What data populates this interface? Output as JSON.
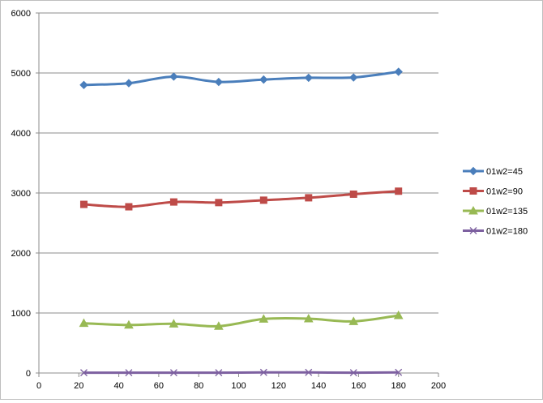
{
  "chart_data": {
    "type": "line",
    "title": "",
    "xlabel": "",
    "ylabel": "",
    "xlim": [
      0,
      200
    ],
    "ylim": [
      0,
      6000
    ],
    "x_ticks": [
      "0",
      "20",
      "40",
      "60",
      "80",
      "100",
      "120",
      "140",
      "160",
      "180",
      "200"
    ],
    "y_ticks": [
      "0",
      "1000",
      "2000",
      "3000",
      "4000",
      "5000",
      "6000"
    ],
    "grid": "horizontal",
    "legend_position": "right",
    "x": [
      22.5,
      45,
      67.5,
      90,
      112.5,
      135,
      157.5,
      180
    ],
    "series": [
      {
        "name": "01w2=45",
        "color": "#4a7ebb",
        "marker": "diamond",
        "values": [
          4800,
          4830,
          4940,
          4850,
          4890,
          4920,
          4925,
          5020
        ]
      },
      {
        "name": "01w2=90",
        "color": "#be4b48",
        "marker": "square",
        "values": [
          2810,
          2770,
          2850,
          2840,
          2880,
          2920,
          2980,
          3030
        ]
      },
      {
        "name": "01w2=135",
        "color": "#98b954",
        "marker": "triangle",
        "values": [
          830,
          800,
          820,
          780,
          900,
          905,
          860,
          960
        ]
      },
      {
        "name": "01w2=180",
        "color": "#7d60a0",
        "marker": "x",
        "values": [
          5,
          5,
          5,
          5,
          10,
          10,
          5,
          10
        ]
      }
    ]
  }
}
